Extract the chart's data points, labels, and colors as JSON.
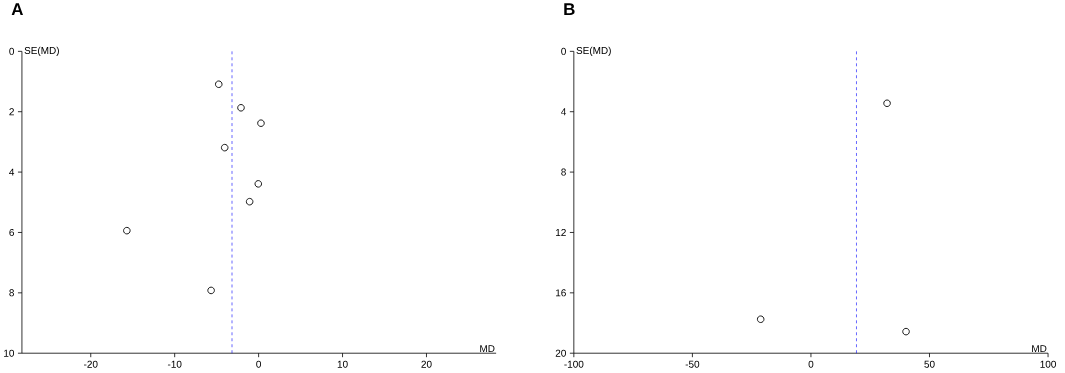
{
  "chart_data": [
    {
      "type": "scatter",
      "title": "A",
      "xlabel": "MD",
      "ylabel": "SE(MD)",
      "marker": "circle",
      "color": "#000000",
      "x": [
        -4.75,
        -2.1,
        0.28,
        -4.04,
        -0.04,
        -1.07,
        -15.7,
        -5.66
      ],
      "values": [
        1.09,
        1.87,
        2.38,
        3.19,
        4.39,
        4.98,
        5.94,
        7.92
      ],
      "xlim": [
        -28.2,
        28.3
      ],
      "ylim": [
        10,
        0
      ],
      "xticks": [
        -20,
        -10,
        0,
        10,
        20
      ],
      "yticks": [
        0,
        2,
        4,
        6,
        8,
        10
      ],
      "ref_lines": [
        {
          "axis": "x",
          "value": -3.17,
          "color": "#0000ff",
          "line_style": "dashed"
        }
      ]
    },
    {
      "type": "scatter",
      "title": "B",
      "xlabel": "MD",
      "ylabel": "SE(MD)",
      "marker": "circle",
      "color": "#000000",
      "x": [
        32.1,
        -21.2,
        40.1
      ],
      "values": [
        3.44,
        17.75,
        18.57
      ],
      "xlim": [
        -100,
        100
      ],
      "ylim": [
        20,
        0
      ],
      "xticks": [
        -100,
        -50,
        0,
        50,
        100
      ],
      "yticks": [
        0,
        4,
        8,
        12,
        16,
        20
      ],
      "ref_lines": [
        {
          "axis": "x",
          "value": 19.2,
          "color": "#0000ff",
          "line_style": "dashed"
        }
      ]
    }
  ]
}
